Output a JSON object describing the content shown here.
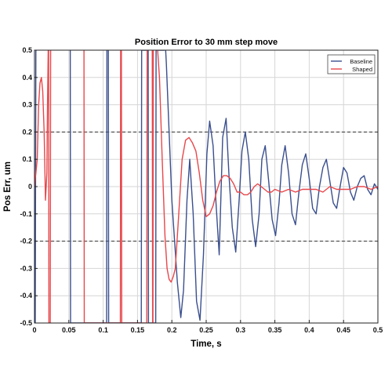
{
  "chart_data": {
    "type": "line",
    "title": "Position Error to 30 mm step move",
    "xlabel": "Time, s",
    "ylabel": "Pos Err, um",
    "xlim": [
      0,
      0.5
    ],
    "ylim": [
      -0.5,
      0.5
    ],
    "x_ticks": [
      0,
      0.05,
      0.1,
      0.15,
      0.2,
      0.25,
      0.3,
      0.35,
      0.4,
      0.45,
      0.5
    ],
    "x_tick_labels": [
      "0",
      "0.05",
      "0.1",
      "0.15",
      "0.2",
      "0.25",
      "0.3",
      "0.35",
      "0.4",
      "0.45",
      "0.5"
    ],
    "y_ticks": [
      -0.5,
      -0.4,
      -0.3,
      -0.2,
      -0.1,
      0,
      0.1,
      0.2,
      0.3,
      0.4,
      0.5
    ],
    "y_tick_labels": [
      "-0.5",
      "-0.4",
      "-0.3",
      "-0.2",
      "-0.1",
      "0",
      "0.1",
      "0.2",
      "0.3",
      "0.4",
      "0.5"
    ],
    "grid": true,
    "legend_position": "top-right",
    "tolerance_lines": [
      0.2,
      -0.2
    ],
    "series": [
      {
        "name": "Baseline",
        "color": "#3a4f8e",
        "x": [
          0,
          0.001,
          0.002,
          0.003,
          0.052,
          0.0525,
          0.053,
          0.1045,
          0.105,
          0.1055,
          0.1075,
          0.108,
          0.1085,
          0.155,
          0.1555,
          0.156,
          0.1565,
          0.165,
          0.1655,
          0.166,
          0.1665,
          0.176,
          0.1765,
          0.177,
          0.1775,
          0.189,
          0.19,
          0.192,
          0.196,
          0.2,
          0.204,
          0.208,
          0.213,
          0.217,
          0.222,
          0.226,
          0.231,
          0.236,
          0.241,
          0.246,
          0.251,
          0.255,
          0.26,
          0.264,
          0.269,
          0.274,
          0.279,
          0.283,
          0.288,
          0.293,
          0.298,
          0.302,
          0.307,
          0.312,
          0.317,
          0.322,
          0.327,
          0.331,
          0.336,
          0.341,
          0.346,
          0.351,
          0.356,
          0.36,
          0.365,
          0.37,
          0.375,
          0.38,
          0.385,
          0.39,
          0.395,
          0.4,
          0.405,
          0.41,
          0.415,
          0.42,
          0.425,
          0.43,
          0.435,
          0.44,
          0.445,
          0.45,
          0.455,
          0.46,
          0.465,
          0.47,
          0.475,
          0.48,
          0.485,
          0.49,
          0.495,
          0.5
        ],
        "y": [
          -0.5,
          -0.55,
          0.55,
          0.5,
          0.55,
          -0.55,
          -0.5,
          -0.5,
          -0.55,
          0.55,
          0.55,
          -0.55,
          -0.5,
          -0.5,
          -0.55,
          0.55,
          0.5,
          0.5,
          0.55,
          -0.55,
          -0.5,
          -0.5,
          -0.55,
          0.55,
          0.5,
          0.5,
          0.55,
          0.45,
          0.2,
          -0.05,
          -0.2,
          -0.35,
          -0.48,
          -0.38,
          -0.05,
          0.1,
          -0.1,
          -0.42,
          -0.49,
          -0.25,
          0.12,
          0.24,
          0.15,
          -0.05,
          -0.25,
          0.18,
          0.25,
          0.05,
          -0.15,
          -0.24,
          -0.05,
          0.13,
          0.2,
          0.1,
          -0.12,
          -0.22,
          -0.1,
          0.1,
          0.15,
          0.02,
          -0.12,
          -0.18,
          -0.06,
          0.08,
          0.15,
          0.05,
          -0.1,
          -0.14,
          -0.02,
          0.08,
          0.12,
          0.03,
          -0.08,
          -0.1,
          0.0,
          0.07,
          0.1,
          0.02,
          -0.06,
          -0.08,
          0.0,
          0.07,
          0.05,
          -0.02,
          -0.05,
          0.0,
          0.03,
          0.04,
          -0.01,
          -0.03,
          0.01,
          -0.01
        ]
      },
      {
        "name": "Shaped",
        "color": "#e8474b",
        "x": [
          0,
          0.001,
          0.002,
          0.004,
          0.006,
          0.008,
          0.01,
          0.012,
          0.014,
          0.016,
          0.018,
          0.019,
          0.02,
          0.0205,
          0.021,
          0.0215,
          0.0225,
          0.023,
          0.0235,
          0.072,
          0.0725,
          0.073,
          0.1245,
          0.125,
          0.1255,
          0.1265,
          0.127,
          0.1275,
          0.163,
          0.1635,
          0.164,
          0.1715,
          0.172,
          0.1725,
          0.173,
          0.178,
          0.182,
          0.186,
          0.19,
          0.193,
          0.196,
          0.199,
          0.202,
          0.205,
          0.21,
          0.215,
          0.22,
          0.225,
          0.23,
          0.235,
          0.24,
          0.245,
          0.25,
          0.255,
          0.26,
          0.265,
          0.27,
          0.275,
          0.28,
          0.285,
          0.29,
          0.295,
          0.3,
          0.305,
          0.31,
          0.315,
          0.32,
          0.325,
          0.33,
          0.335,
          0.34,
          0.345,
          0.35,
          0.36,
          0.37,
          0.38,
          0.39,
          0.4,
          0.41,
          0.42,
          0.43,
          0.44,
          0.45,
          0.46,
          0.47,
          0.48,
          0.49,
          0.5
        ],
        "y": [
          0.0,
          0.03,
          0.05,
          0.1,
          0.3,
          0.38,
          0.4,
          0.35,
          0.2,
          -0.05,
          0.05,
          0.3,
          0.5,
          0.55,
          -0.55,
          -0.5,
          -0.5,
          -0.55,
          0.55,
          0.55,
          -0.55,
          -0.5,
          -0.5,
          -0.55,
          0.55,
          0.55,
          -0.55,
          -0.5,
          -0.5,
          -0.55,
          0.55,
          0.55,
          -0.55,
          -0.5,
          0.5,
          0.55,
          0.4,
          0.1,
          -0.18,
          -0.3,
          -0.34,
          -0.35,
          -0.33,
          -0.3,
          -0.1,
          0.1,
          0.17,
          0.18,
          0.16,
          0.13,
          0.05,
          -0.05,
          -0.11,
          -0.1,
          -0.07,
          -0.02,
          0.02,
          0.04,
          0.04,
          0.03,
          0.01,
          -0.02,
          -0.02,
          -0.03,
          -0.03,
          -0.02,
          0.0,
          0.01,
          0.0,
          -0.01,
          -0.02,
          -0.02,
          -0.01,
          -0.02,
          -0.01,
          -0.02,
          -0.01,
          -0.01,
          -0.01,
          -0.02,
          0.0,
          -0.01,
          -0.01,
          -0.01,
          0.0,
          0.0,
          -0.01,
          0.0
        ]
      }
    ]
  }
}
